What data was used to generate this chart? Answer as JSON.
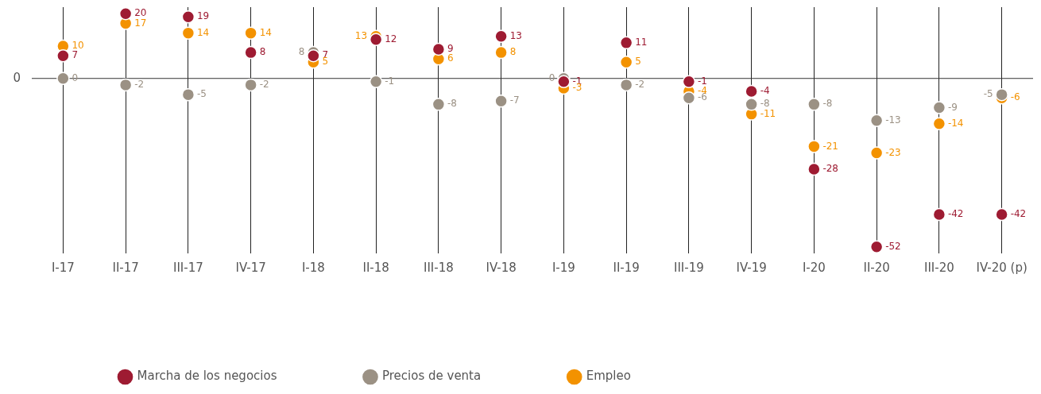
{
  "chart_data": {
    "type": "scatter",
    "categories": [
      "I-17",
      "II-17",
      "III-17",
      "IV-17",
      "I-18",
      "II-18",
      "III-18",
      "IV-18",
      "I-19",
      "II-19",
      "III-19",
      "IV-19",
      "I-20",
      "II-20",
      "III-20",
      "IV-20 (p)"
    ],
    "series": [
      {
        "name": "Marcha de los negocios",
        "color": "#9e1b32",
        "values": [
          7,
          20,
          19,
          8,
          7,
          12,
          9,
          13,
          -1,
          11,
          -1,
          -4,
          -28,
          -52,
          -42,
          -42
        ]
      },
      {
        "name": "Precios de venta",
        "color": "#9b9184",
        "values": [
          0,
          -2,
          -5,
          -2,
          8,
          -1,
          -8,
          -7,
          0,
          -2,
          -6,
          -8,
          -8,
          -13,
          -9,
          -5
        ]
      },
      {
        "name": "Empleo",
        "color": "#f39200",
        "values": [
          10,
          17,
          14,
          14,
          5,
          13,
          6,
          8,
          -3,
          5,
          -4,
          -11,
          -21,
          -23,
          -14,
          -6
        ]
      }
    ],
    "ylim": [
      -54,
      22
    ],
    "grid": "x",
    "ref_lines": [
      {
        "axis": "y",
        "value": 0,
        "label": "0"
      }
    ],
    "data_labels": true,
    "legend": "bottom",
    "marker": "circle"
  }
}
